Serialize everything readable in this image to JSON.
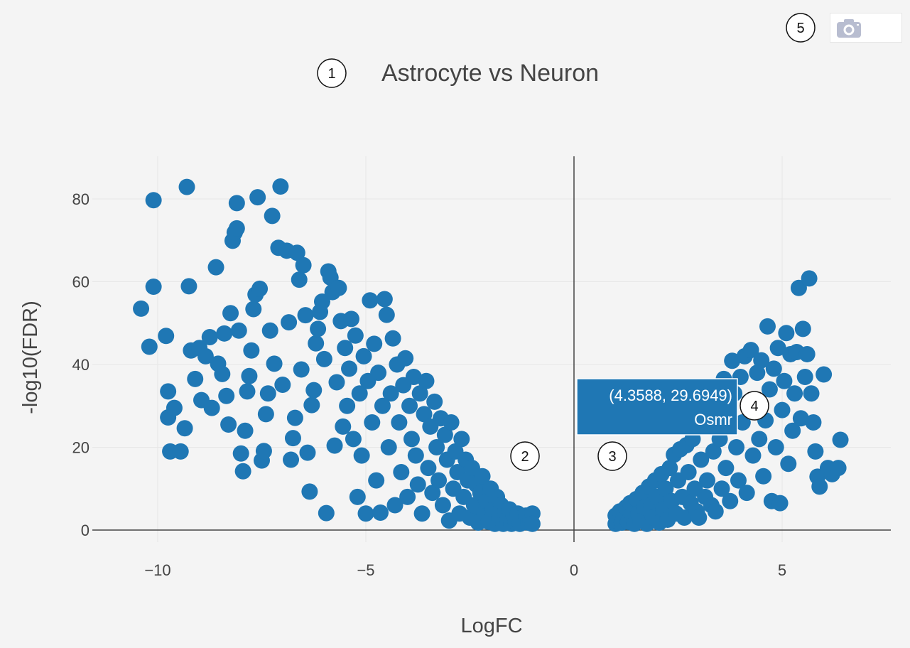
{
  "colors": {
    "background": "#f4f4f4",
    "marker": "#1f77b4",
    "grid": "#e6e6e6",
    "axis_line": "#444444",
    "text": "#444444",
    "hover_bg": "#1f77b4",
    "hover_text": "#ffffff",
    "modebar_icon": "#b8bdd0"
  },
  "callouts": {
    "c1": "1",
    "c2": "2",
    "c3": "3",
    "c4": "4",
    "c5": "5"
  },
  "modebar": {
    "camera_icon": "camera-icon"
  },
  "hover": {
    "coords": "(4.3588, 29.6949)",
    "gene": "Osmr",
    "x": 4.3588,
    "y": 29.6949
  },
  "chart_data": {
    "type": "scatter",
    "title": "Astrocyte vs Neuron",
    "xlabel": "LogFC",
    "ylabel": "-log10(FDR)",
    "xlim": [
      -12,
      7.7
    ],
    "ylim": [
      -3,
      90
    ],
    "x_ticks": [
      -10,
      -5,
      0,
      5
    ],
    "x_tick_labels": [
      "−10",
      "−5",
      "0",
      "5"
    ],
    "y_ticks": [
      0,
      20,
      40,
      60,
      80
    ],
    "y_tick_labels": [
      "0",
      "20",
      "40",
      "60",
      "80"
    ],
    "grid": true,
    "legend": "none",
    "series": [
      {
        "name": "",
        "points": [
          [
            -10.4,
            53.5
          ],
          [
            -10.2,
            44.3
          ],
          [
            -10.1,
            79.7
          ],
          [
            -10.1,
            58.8
          ],
          [
            -9.8,
            46.9
          ],
          [
            -9.75,
            33.5
          ],
          [
            -9.75,
            27.2
          ],
          [
            -9.7,
            19.0
          ],
          [
            -9.6,
            29.5
          ],
          [
            -9.45,
            19.0
          ],
          [
            -9.35,
            24.6
          ],
          [
            -9.3,
            82.9
          ],
          [
            -9.25,
            58.9
          ],
          [
            -9.2,
            43.4
          ],
          [
            -9.1,
            36.5
          ],
          [
            -9.0,
            44.0
          ],
          [
            -8.95,
            31.4
          ],
          [
            -8.85,
            42.0
          ],
          [
            -8.75,
            46.6
          ],
          [
            -8.7,
            29.5
          ],
          [
            -8.6,
            63.5
          ],
          [
            -8.55,
            40.2
          ],
          [
            -8.45,
            37.7
          ],
          [
            -8.4,
            47.5
          ],
          [
            -8.35,
            32.4
          ],
          [
            -8.3,
            25.5
          ],
          [
            -8.25,
            52.4
          ],
          [
            -8.2,
            69.9
          ],
          [
            -8.15,
            71.9
          ],
          [
            -8.1,
            79.0
          ],
          [
            -8.1,
            72.9
          ],
          [
            -8.05,
            48.2
          ],
          [
            -8.0,
            18.5
          ],
          [
            -7.95,
            14.2
          ],
          [
            -7.9,
            24.0
          ],
          [
            -7.85,
            33.5
          ],
          [
            -7.8,
            37.2
          ],
          [
            -7.75,
            43.4
          ],
          [
            -7.7,
            53.4
          ],
          [
            -7.65,
            56.9
          ],
          [
            -7.6,
            80.4
          ],
          [
            -7.55,
            58.3
          ],
          [
            -7.5,
            16.8
          ],
          [
            -7.45,
            19.1
          ],
          [
            -7.4,
            28.0
          ],
          [
            -7.35,
            33.0
          ],
          [
            -7.3,
            48.2
          ],
          [
            -7.25,
            75.9
          ],
          [
            -7.2,
            40.2
          ],
          [
            -7.1,
            68.2
          ],
          [
            -7.05,
            83.0
          ],
          [
            -7.0,
            35.1
          ],
          [
            -6.9,
            67.5
          ],
          [
            -6.85,
            50.2
          ],
          [
            -6.8,
            17.0
          ],
          [
            -6.75,
            22.2
          ],
          [
            -6.7,
            27.1
          ],
          [
            -6.65,
            67.0
          ],
          [
            -6.6,
            60.5
          ],
          [
            -6.55,
            38.8
          ],
          [
            -6.5,
            64.0
          ],
          [
            -6.45,
            51.9
          ],
          [
            -6.4,
            18.7
          ],
          [
            -6.35,
            9.3
          ],
          [
            -6.3,
            30.2
          ],
          [
            -6.25,
            33.8
          ],
          [
            -6.2,
            45.1
          ],
          [
            -6.15,
            48.6
          ],
          [
            -6.1,
            52.7
          ],
          [
            -6.05,
            55.2
          ],
          [
            -6.0,
            41.3
          ],
          [
            -5.95,
            4.1
          ],
          [
            -5.9,
            62.5
          ],
          [
            -5.85,
            61.0
          ],
          [
            -5.8,
            57.5
          ],
          [
            -5.75,
            20.4
          ],
          [
            -5.7,
            35.7
          ],
          [
            -5.65,
            58.5
          ],
          [
            -5.6,
            50.5
          ],
          [
            -5.55,
            25.0
          ],
          [
            -5.5,
            44.0
          ],
          [
            -5.45,
            30.0
          ],
          [
            -5.4,
            39.0
          ],
          [
            -5.35,
            51.0
          ],
          [
            -5.3,
            22.0
          ],
          [
            -5.25,
            47.0
          ],
          [
            -5.2,
            8.0
          ],
          [
            -5.15,
            33.0
          ],
          [
            -5.1,
            18.0
          ],
          [
            -5.05,
            42.0
          ],
          [
            -5.0,
            4.0
          ],
          [
            -4.95,
            36.0
          ],
          [
            -4.9,
            55.5
          ],
          [
            -4.85,
            26.0
          ],
          [
            -4.8,
            45.0
          ],
          [
            -4.75,
            12.0
          ],
          [
            -4.7,
            38.0
          ],
          [
            -4.65,
            4.2
          ],
          [
            -4.6,
            30.0
          ],
          [
            -4.55,
            55.8
          ],
          [
            -4.5,
            52.0
          ],
          [
            -4.45,
            20.0
          ],
          [
            -4.4,
            33.0
          ],
          [
            -4.35,
            46.3
          ],
          [
            -4.3,
            6.0
          ],
          [
            -4.25,
            40.0
          ],
          [
            -4.2,
            26.0
          ],
          [
            -4.15,
            14.0
          ],
          [
            -4.1,
            35.0
          ],
          [
            -4.05,
            41.5
          ],
          [
            -4.0,
            8.0
          ],
          [
            -3.95,
            30.0
          ],
          [
            -3.9,
            22.0
          ],
          [
            -3.85,
            37.0
          ],
          [
            -3.8,
            18.0
          ],
          [
            -3.75,
            11.0
          ],
          [
            -3.7,
            33.0
          ],
          [
            -3.65,
            4.0
          ],
          [
            -3.6,
            28.0
          ],
          [
            -3.55,
            36.0
          ],
          [
            -3.5,
            15.0
          ],
          [
            -3.45,
            25.0
          ],
          [
            -3.4,
            9.0
          ],
          [
            -3.35,
            31.0
          ],
          [
            -3.3,
            20.0
          ],
          [
            -3.25,
            12.0
          ],
          [
            -3.2,
            27.0
          ],
          [
            -3.15,
            6.0
          ],
          [
            -3.1,
            23.0
          ],
          [
            -3.05,
            17.0
          ],
          [
            -3.0,
            2.3
          ],
          [
            -2.95,
            26.0
          ],
          [
            -2.9,
            10.0
          ],
          [
            -2.85,
            19.0
          ],
          [
            -2.8,
            14.0
          ],
          [
            -2.75,
            4.0
          ],
          [
            -2.7,
            22.0
          ],
          [
            -2.65,
            8.0
          ],
          [
            -2.6,
            17.0
          ],
          [
            -2.55,
            12.0
          ],
          [
            -2.5,
            3.0
          ],
          [
            -2.45,
            15.0
          ],
          [
            -2.4,
            6.0
          ],
          [
            -2.35,
            11.0
          ],
          [
            -2.3,
            1.8
          ],
          [
            -2.25,
            9.0
          ],
          [
            -2.2,
            13.0
          ],
          [
            -2.15,
            4.0
          ],
          [
            -2.1,
            7.0
          ],
          [
            -2.05,
            2.0
          ],
          [
            -2.0,
            10.0
          ],
          [
            -1.95,
            5.0
          ],
          [
            -1.9,
            1.5
          ],
          [
            -1.85,
            8.0
          ],
          [
            -1.8,
            3.0
          ],
          [
            -1.75,
            6.0
          ],
          [
            -1.7,
            1.5
          ],
          [
            -1.65,
            4.5
          ],
          [
            -1.6,
            2.5
          ],
          [
            -1.55,
            5.0
          ],
          [
            -1.5,
            1.5
          ],
          [
            -1.45,
            3.5
          ],
          [
            -1.4,
            2.0
          ],
          [
            -1.35,
            4.0
          ],
          [
            -1.3,
            1.5
          ],
          [
            -1.25,
            3.0
          ],
          [
            -1.2,
            2.0
          ],
          [
            -1.15,
            3.5
          ],
          [
            -1.1,
            1.8
          ],
          [
            -1.05,
            2.5
          ],
          [
            -1.0,
            4.0
          ],
          [
            -1.0,
            1.5
          ],
          [
            1.0,
            1.5
          ],
          [
            1.0,
            3.5
          ],
          [
            1.05,
            2.2
          ],
          [
            1.1,
            4.5
          ],
          [
            1.15,
            1.8
          ],
          [
            1.2,
            3.2
          ],
          [
            1.25,
            5.5
          ],
          [
            1.3,
            2.0
          ],
          [
            1.35,
            6.5
          ],
          [
            1.4,
            3.8
          ],
          [
            1.45,
            1.5
          ],
          [
            1.5,
            7.5
          ],
          [
            1.55,
            4.0
          ],
          [
            1.6,
            2.2
          ],
          [
            1.65,
            9.0
          ],
          [
            1.7,
            5.5
          ],
          [
            1.75,
            1.5
          ],
          [
            1.8,
            10.5
          ],
          [
            1.85,
            6.0
          ],
          [
            1.9,
            3.0
          ],
          [
            1.95,
            12.0
          ],
          [
            2.0,
            8.0
          ],
          [
            2.05,
            1.8
          ],
          [
            2.1,
            13.5
          ],
          [
            2.15,
            5.0
          ],
          [
            2.2,
            10.0
          ],
          [
            2.25,
            2.5
          ],
          [
            2.3,
            15.0
          ],
          [
            2.35,
            7.0
          ],
          [
            2.4,
            18.2
          ],
          [
            2.45,
            4.0
          ],
          [
            2.5,
            12.0
          ],
          [
            2.55,
            19.5
          ],
          [
            2.6,
            8.0
          ],
          [
            2.65,
            3.0
          ],
          [
            2.7,
            20.5
          ],
          [
            2.75,
            14.0
          ],
          [
            2.8,
            6.5
          ],
          [
            2.85,
            22.0
          ],
          [
            2.9,
            10.0
          ],
          [
            2.95,
            4.5
          ],
          [
            3.0,
            3.0
          ],
          [
            3.05,
            17.0
          ],
          [
            3.1,
            25.5
          ],
          [
            3.15,
            8.0
          ],
          [
            3.2,
            12.0
          ],
          [
            3.25,
            28.0
          ],
          [
            3.3,
            6.0
          ],
          [
            3.35,
            19.0
          ],
          [
            3.4,
            4.5
          ],
          [
            3.45,
            30.5
          ],
          [
            3.5,
            22.0
          ],
          [
            3.55,
            10.0
          ],
          [
            3.6,
            36.5
          ],
          [
            3.65,
            15.0
          ],
          [
            3.7,
            28.0
          ],
          [
            3.75,
            7.0
          ],
          [
            3.8,
            40.9
          ],
          [
            3.85,
            33.0
          ],
          [
            3.9,
            20.0
          ],
          [
            3.95,
            12.0
          ],
          [
            4.0,
            37.0
          ],
          [
            4.05,
            26.0
          ],
          [
            4.1,
            42.0
          ],
          [
            4.15,
            9.0
          ],
          [
            4.2,
            31.0
          ],
          [
            4.25,
            43.5
          ],
          [
            4.3,
            18.0
          ],
          [
            4.3588,
            29.6949
          ],
          [
            4.4,
            38.0
          ],
          [
            4.45,
            22.0
          ],
          [
            4.5,
            41.0
          ],
          [
            4.55,
            13.0
          ],
          [
            4.6,
            26.5
          ],
          [
            4.65,
            49.2
          ],
          [
            4.7,
            34.0
          ],
          [
            4.75,
            7.0
          ],
          [
            4.8,
            39.0
          ],
          [
            4.85,
            20.0
          ],
          [
            4.9,
            44.0
          ],
          [
            4.95,
            6.5
          ],
          [
            5.0,
            29.0
          ],
          [
            5.05,
            36.0
          ],
          [
            5.1,
            47.6
          ],
          [
            5.15,
            16.0
          ],
          [
            5.2,
            42.5
          ],
          [
            5.25,
            24.0
          ],
          [
            5.3,
            33.0
          ],
          [
            5.35,
            43.0
          ],
          [
            5.4,
            58.5
          ],
          [
            5.45,
            27.0
          ],
          [
            5.5,
            48.6
          ],
          [
            5.55,
            37.0
          ],
          [
            5.6,
            42.5
          ],
          [
            5.65,
            60.8
          ],
          [
            5.7,
            33.0
          ],
          [
            5.75,
            26.0
          ],
          [
            5.8,
            19.0
          ],
          [
            5.85,
            12.9
          ],
          [
            5.9,
            10.5
          ],
          [
            6.0,
            37.6
          ],
          [
            6.1,
            15.0
          ],
          [
            6.2,
            13.5
          ],
          [
            6.35,
            15.0
          ],
          [
            6.4,
            21.8
          ]
        ]
      }
    ]
  }
}
